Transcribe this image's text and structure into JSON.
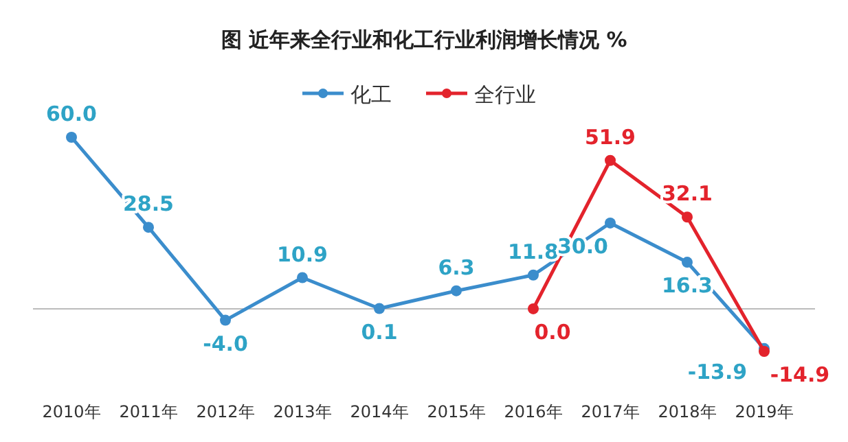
{
  "chart_data": {
    "type": "line",
    "title": "图  近年来全行业和化工行业利润增长情况  %",
    "categories": [
      "2010年",
      "2011年",
      "2012年",
      "2013年",
      "2014年",
      "2015年",
      "2016年",
      "2017年",
      "2018年",
      "2019年"
    ],
    "series": [
      {
        "name": "化工",
        "color": "#3b8dcc",
        "values": [
          60.0,
          28.5,
          -4.0,
          10.9,
          0.1,
          6.3,
          11.8,
          30.0,
          16.3,
          -13.9
        ],
        "value_labels": [
          "60.0",
          "28.5",
          "-4.0",
          "10.9",
          "0.1",
          "6.3",
          "11.8",
          "30.0",
          "16.3",
          "-13.9"
        ]
      },
      {
        "name": "全行业",
        "color": "#e3232c",
        "values": [
          null,
          null,
          null,
          null,
          null,
          null,
          0.0,
          51.9,
          32.1,
          -14.9
        ],
        "value_labels": [
          null,
          null,
          null,
          null,
          null,
          null,
          "0.0",
          "51.9",
          "32.1",
          "-14.9"
        ]
      }
    ],
    "legend": "top",
    "marker": "circle"
  }
}
